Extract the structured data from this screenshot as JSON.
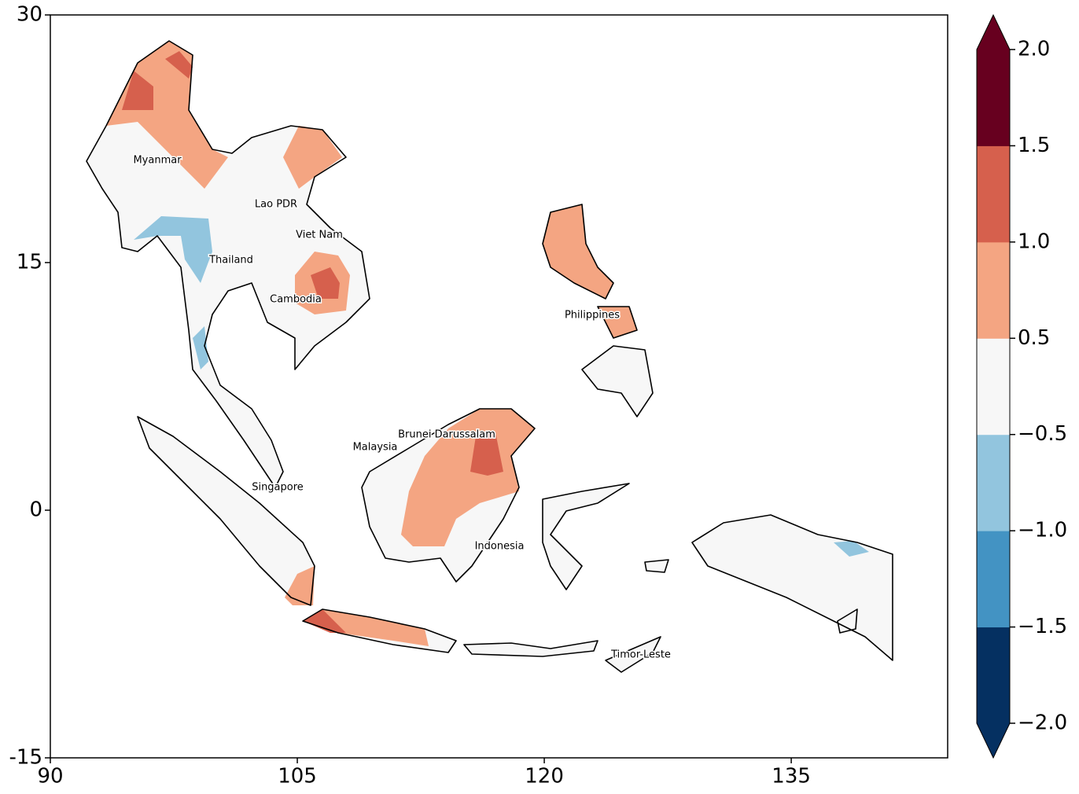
{
  "map": {
    "xlim": [
      90,
      144.5
    ],
    "ylim": [
      -15,
      30
    ],
    "xticks": [
      90,
      105,
      120,
      135
    ],
    "yticks": [
      -15,
      0,
      15,
      30
    ],
    "countries": [
      "Myanmar",
      "Lao PDR",
      "Viet Nam",
      "Thailand",
      "Cambodia",
      "Philippines",
      "Brunei Darussalam",
      "Malaysia",
      "Singapore",
      "Indonesia",
      "Timor-Leste"
    ],
    "colorbar": {
      "levels": [
        {
          "value": -2,
          "label": "−2.0"
        },
        {
          "value": -1.5,
          "label": "−1.5"
        },
        {
          "value": -1,
          "label": "−1.0"
        },
        {
          "value": -0.5,
          "label": "−0.5"
        },
        0.5,
        {
          "value": 1,
          "label": "1.0"
        },
        1.5,
        {
          "value": 2,
          "label": "2.0"
        }
      ],
      "colors": [
        "#053061",
        "#4393c3",
        "#92c5de",
        "#f7f7f7",
        "#f4a582",
        "#d6604d",
        "#67001f"
      ]
    }
  }
}
